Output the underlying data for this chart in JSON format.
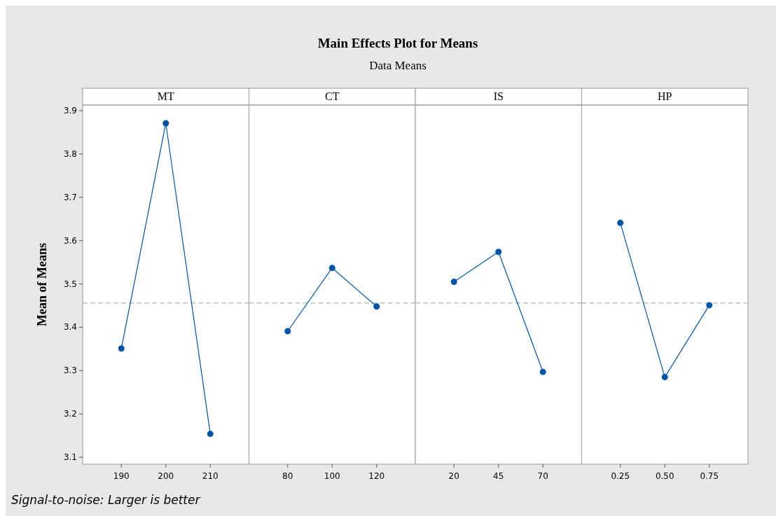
{
  "chart_data": [
    {
      "type": "line",
      "title": "MT",
      "ylabel": "Mean of Means",
      "annotations": [
        "Main Effects Plot for Means",
        "Data Means",
        "Signal-to-noise: Larger is better"
      ],
      "categories": [
        "190",
        "200",
        "210"
      ],
      "values": [
        3.351,
        3.871,
        3.154
      ],
      "color": "#0054a6",
      "marker": "circle",
      "ylim": [
        3.084,
        3.913
      ],
      "yticks": [
        3.1,
        3.2,
        3.3,
        3.4,
        3.5,
        3.6,
        3.7,
        3.8,
        3.9
      ],
      "ref_lines": [
        {
          "axis": "y",
          "value": 3.456,
          "line_style": "dashed",
          "color": "#a0a0a0"
        }
      ]
    },
    {
      "type": "line",
      "title": "CT",
      "categories": [
        "80",
        "100",
        "120"
      ],
      "values": [
        3.391,
        3.537,
        3.448
      ],
      "color": "#0054a6",
      "marker": "circle",
      "ylim": [
        3.084,
        3.913
      ],
      "tick_labels": "x",
      "ref_lines": [
        {
          "axis": "y",
          "value": 3.456,
          "line_style": "dashed",
          "color": "#a0a0a0"
        }
      ]
    },
    {
      "type": "line",
      "title": "IS",
      "categories": [
        "20",
        "45",
        "70"
      ],
      "values": [
        3.505,
        3.574,
        3.297
      ],
      "color": "#0054a6",
      "marker": "circle",
      "ylim": [
        3.084,
        3.913
      ],
      "tick_labels": "x",
      "ref_lines": [
        {
          "axis": "y",
          "value": 3.456,
          "line_style": "dashed",
          "color": "#a0a0a0"
        }
      ]
    },
    {
      "type": "line",
      "title": "HP",
      "categories": [
        "0.25",
        "0.50",
        "0.75"
      ],
      "values": [
        3.641,
        3.285,
        3.451
      ],
      "color": "#0054a6",
      "marker": "circle",
      "ylim": [
        3.084,
        3.913
      ],
      "tick_labels": "x",
      "ref_lines": [
        {
          "axis": "y",
          "value": 3.456,
          "line_style": "dashed",
          "color": "#a0a0a0"
        }
      ]
    }
  ]
}
